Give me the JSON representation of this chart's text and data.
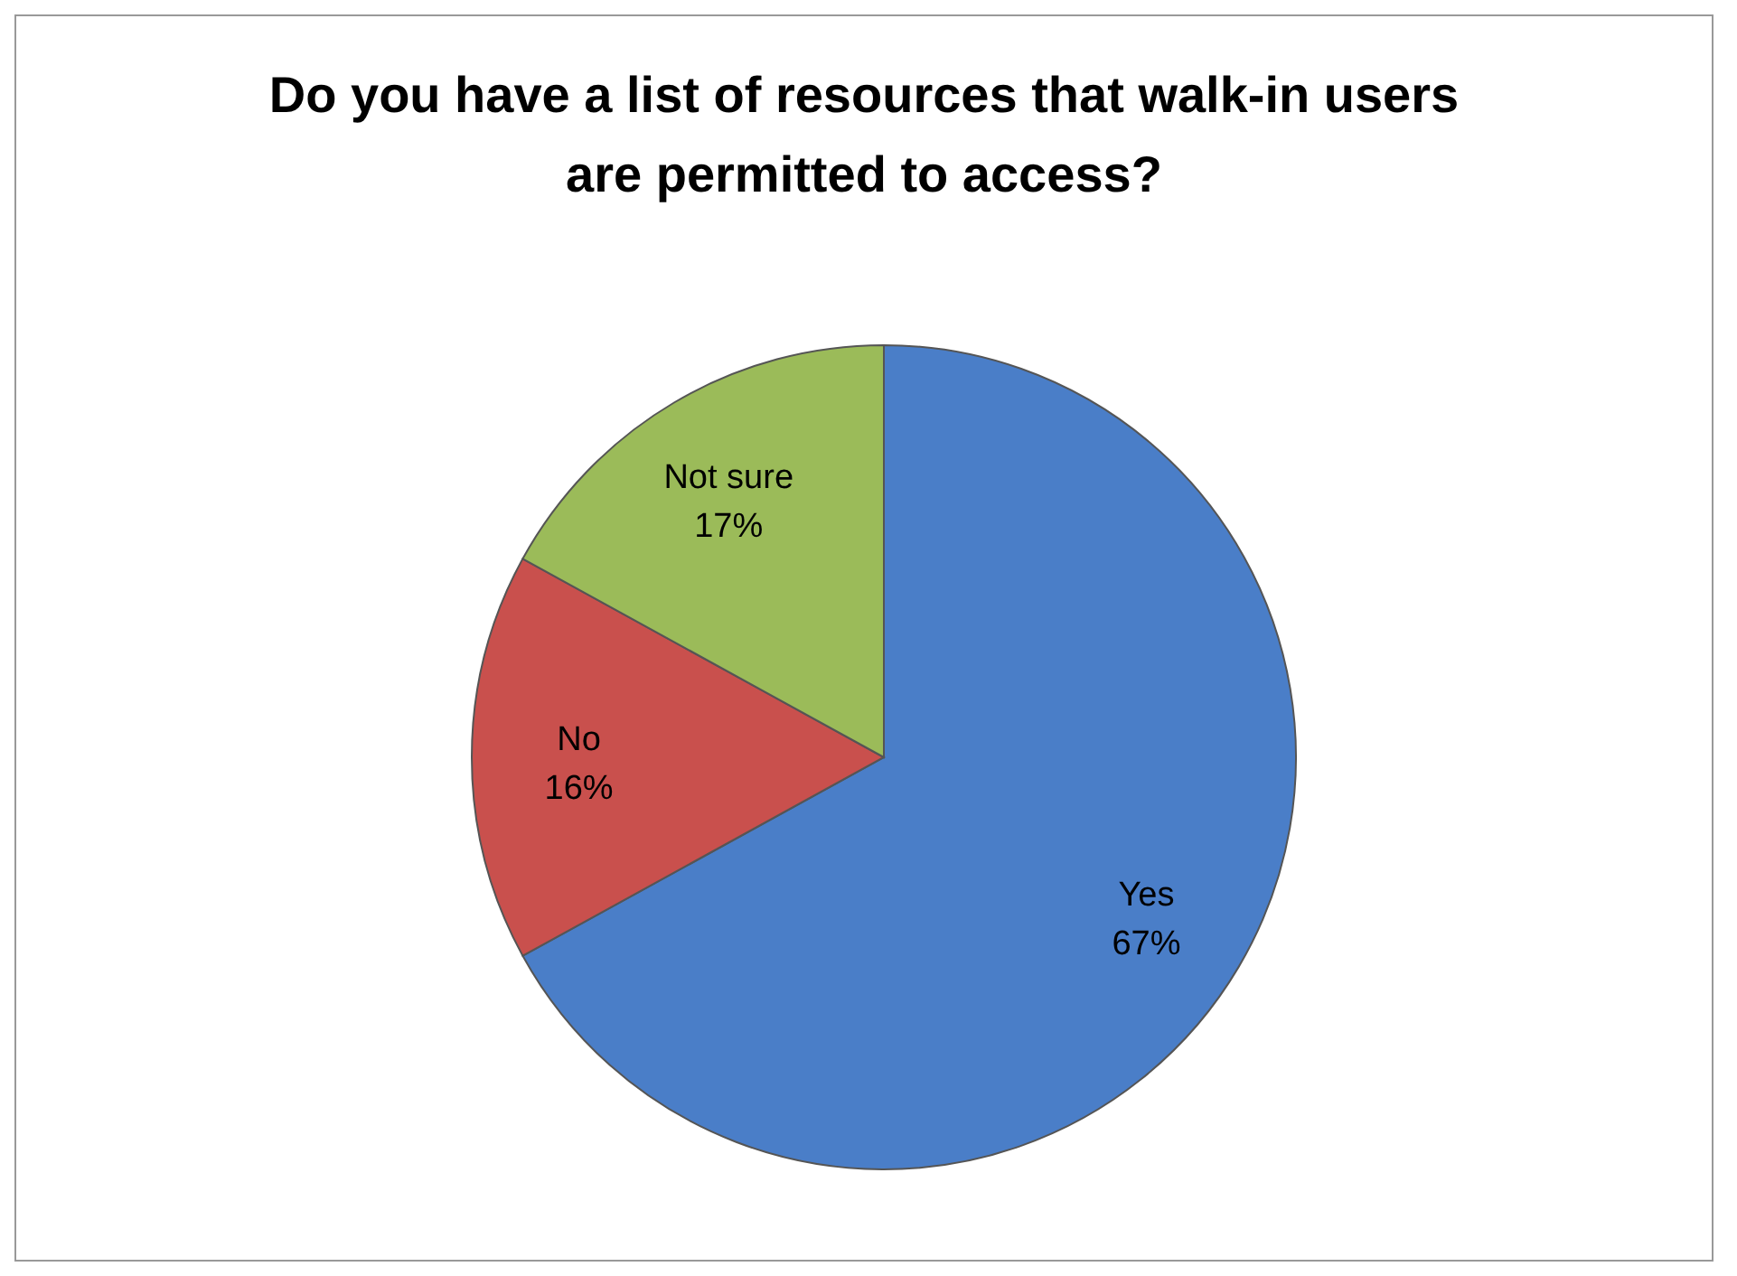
{
  "chart_data": {
    "type": "pie",
    "title": "Do you have a list of resources that walk-in users are permitted to access?",
    "categories": [
      "Yes",
      "No",
      "Not sure"
    ],
    "values": [
      67,
      16,
      17
    ],
    "colors": [
      "#4a7ec8",
      "#c9504d",
      "#9bbb59"
    ],
    "value_labels": [
      "67%",
      "16%",
      "17%"
    ]
  }
}
